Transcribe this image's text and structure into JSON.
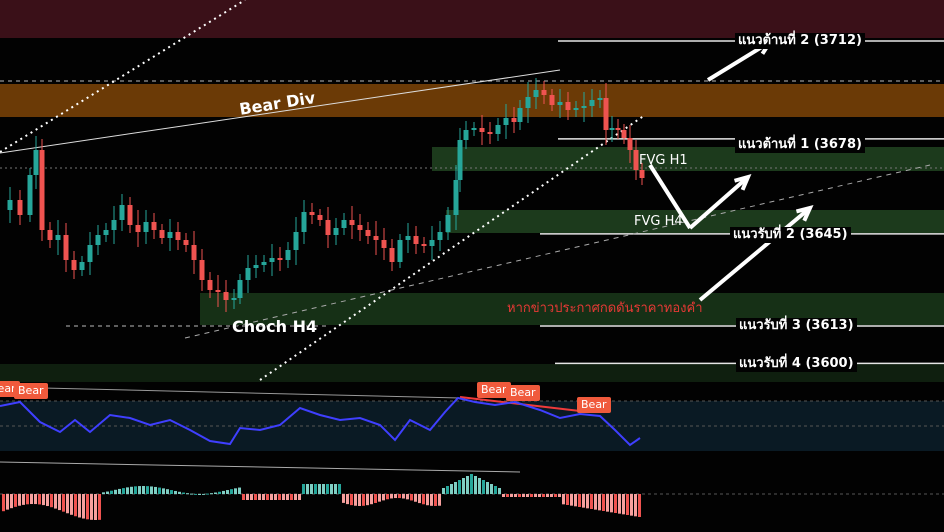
{
  "chart_data": {
    "type": "candlestick",
    "levels": [
      {
        "label": "แนวต้านที่ 2 (3712)",
        "value": 3712
      },
      {
        "label": "แนวต้านที่ 1 (3678)",
        "value": 3678
      },
      {
        "label": "แนวรับที่ 2 (3645)",
        "value": 3645
      },
      {
        "label": "แนวรับที่ 3 (3613)",
        "value": 3613
      },
      {
        "label": "แนวรับที่ 4 (3600)",
        "value": 3600
      }
    ],
    "zones": [
      {
        "label": "",
        "color": "#6b3a06"
      },
      {
        "label": "FVG H1",
        "color": "#1c3a1c"
      },
      {
        "label": "FVG H4",
        "color": "#1c3a1c"
      },
      {
        "label": "",
        "color": "#163016"
      }
    ],
    "annotations": {
      "bear_div": "Bear Div",
      "choch": "Choch H4",
      "note": "หากข่าวประกาศกดดันราคาทองคำ"
    },
    "rsi_labels": [
      "Bear",
      "Bear",
      "Bear",
      "Bear"
    ],
    "colors": {
      "up": "#26a69a",
      "down": "#ef5350",
      "rsi": "#3f3fff",
      "top_band": "#3a1018"
    }
  }
}
